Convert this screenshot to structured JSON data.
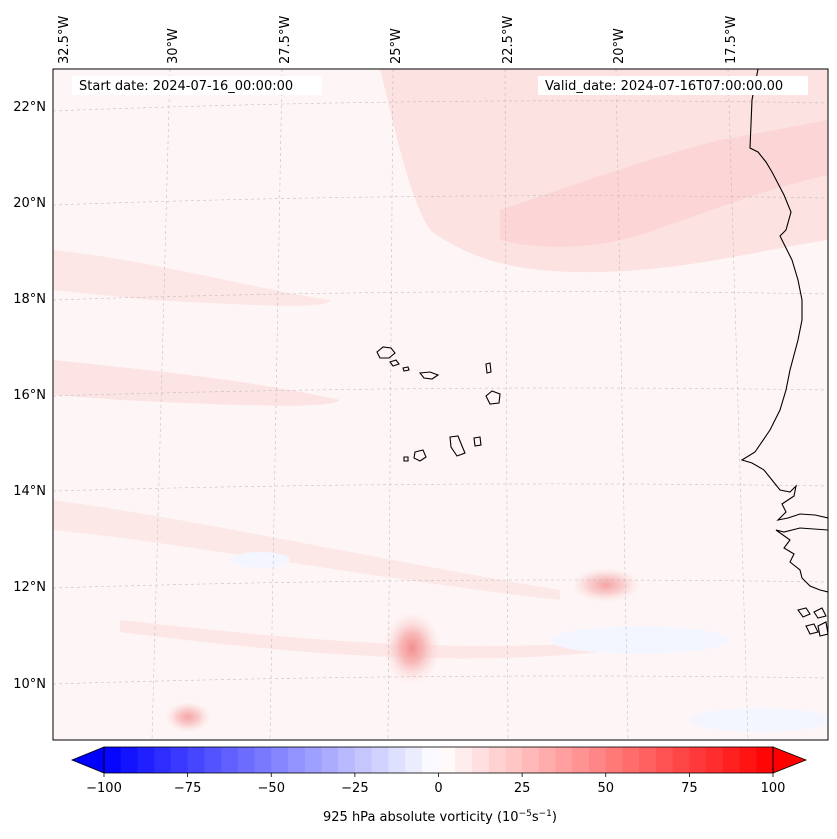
{
  "map": {
    "start_date": "Start date: 2024-07-16_00:00:00",
    "valid_date": "Valid_date: 2024-07-16T07:00:00.00",
    "lon_labels": [
      "32.5°W",
      "30°W",
      "27.5°W",
      "25°W",
      "22.5°W",
      "20°W",
      "17.5°W"
    ],
    "lat_labels": [
      "22°N",
      "20°N",
      "18°N",
      "16°N",
      "14°N",
      "12°N",
      "10°N"
    ],
    "land_features": [
      "Cape Verde islands",
      "West African coastline"
    ]
  },
  "colorbar": {
    "label": "925 hPa absolute vorticity (10",
    "label_exp1": "−5",
    "label_mid": "s",
    "label_exp2": "−1",
    "label_end": ")",
    "ticks": [
      "−100",
      "−75",
      "−50",
      "−25",
      "0",
      "25",
      "50",
      "75",
      "100"
    ],
    "min": -100,
    "max": 100,
    "colors": {
      "neg": "#0000ff",
      "zero": "#ffffff",
      "pos": "#ff0000"
    }
  }
}
